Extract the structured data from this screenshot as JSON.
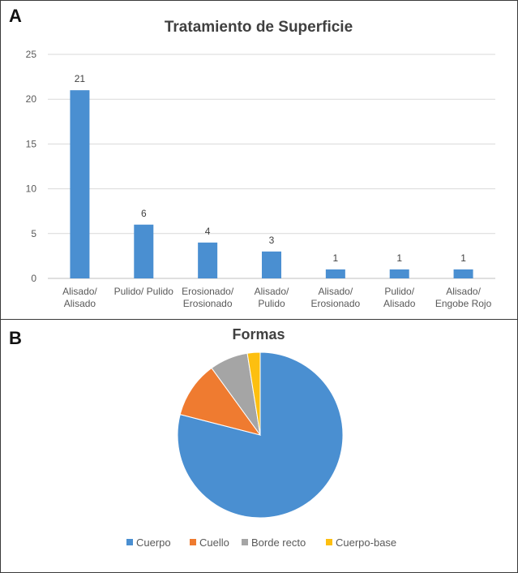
{
  "panels": {
    "a_label": "A",
    "b_label": "B"
  },
  "chart_data": [
    {
      "type": "bar",
      "title": "Tratamiento de Superficie",
      "categories": [
        [
          "Alisado/",
          "Alisado"
        ],
        [
          "Pulido/ Pulido"
        ],
        [
          "Erosionado/",
          "Erosionado"
        ],
        [
          "Alisado/",
          "Pulido"
        ],
        [
          "Alisado/",
          "Erosionado"
        ],
        [
          "Pulido/",
          "Alisado"
        ],
        [
          "Alisado/",
          "Engobe Rojo"
        ]
      ],
      "values": [
        21,
        6,
        4,
        3,
        1,
        1,
        1
      ],
      "ylim": [
        0,
        25
      ],
      "yticks": [
        0,
        5,
        10,
        15,
        20,
        25
      ],
      "grid": true,
      "data_labels": true,
      "color": "#4a8fd1"
    },
    {
      "type": "pie",
      "title": "Formas",
      "labels": [
        "Cuerpo",
        "Cuello",
        "Borde recto",
        "Cuerpo-base"
      ],
      "values": [
        79,
        11,
        7.5,
        2.5
      ],
      "colors": [
        "#4a8fd1",
        "#ef7b30",
        "#a5a5a5",
        "#fdbf10"
      ],
      "legend_position": "bottom"
    }
  ]
}
